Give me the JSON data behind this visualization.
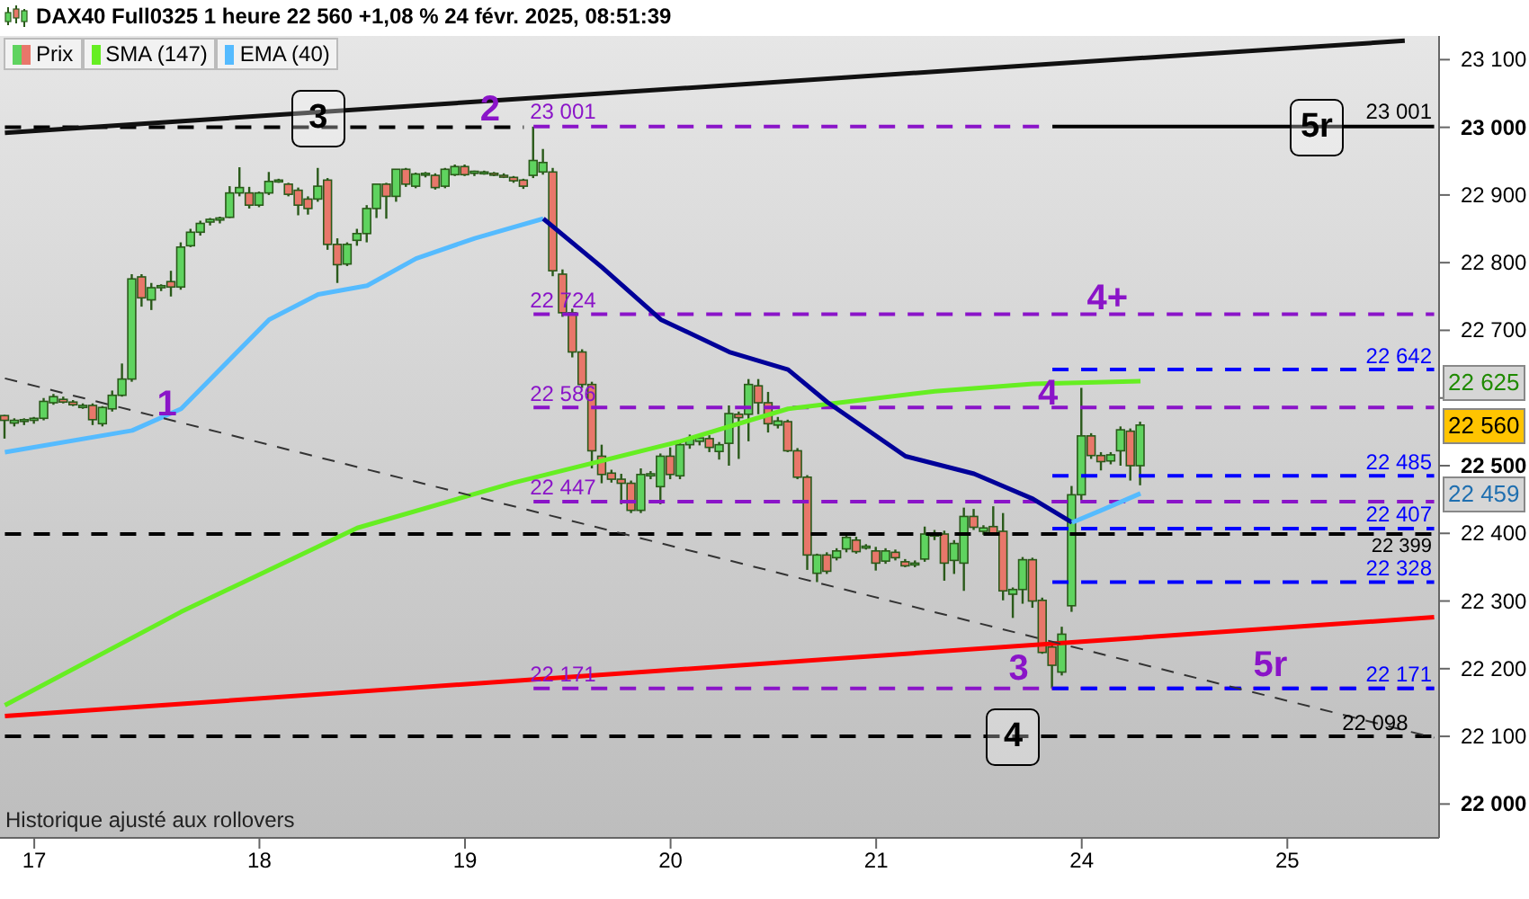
{
  "chart_data": {
    "type": "candlestick",
    "title": "DAX40 Full0325 1 heure 22 560 +1,08 % 24 févr. 2025, 08:51:39",
    "legend": "top left",
    "categories": [
      null,
      null,
      null,
      "17",
      null,
      null,
      null,
      null,
      null,
      null,
      null,
      null,
      null,
      null,
      null,
      null,
      null,
      null,
      null,
      null,
      null,
      null,
      null,
      null,
      null,
      null,
      "18",
      null,
      null,
      null,
      null,
      null,
      null,
      null,
      null,
      null,
      null,
      null,
      null,
      null,
      null,
      null,
      null,
      null,
      null,
      null,
      null,
      "19",
      null,
      null,
      null,
      null,
      null,
      null,
      null,
      null,
      null,
      null,
      null,
      null,
      null,
      null,
      null,
      null,
      null,
      null,
      null,
      null,
      "20",
      null,
      null,
      null,
      null,
      null,
      null,
      null,
      null,
      null,
      null,
      null,
      null,
      null,
      null,
      null,
      null,
      null,
      null,
      null,
      null,
      "21",
      null,
      null,
      null,
      null,
      null,
      null,
      null,
      null,
      null,
      null,
      null,
      null,
      null,
      null,
      null,
      null,
      null,
      null,
      null,
      null,
      "24",
      null,
      null,
      null,
      null,
      null,
      null,
      null,
      null,
      null,
      null,
      null,
      null,
      null,
      null,
      null,
      null,
      null,
      null,
      null,
      null,
      "25",
      null,
      null,
      null,
      null,
      null,
      null,
      null,
      null,
      null,
      null,
      null,
      null,
      null,
      null,
      null
    ],
    "ylim": [
      21950,
      23135
    ],
    "yticks": [
      {
        "value": 22000,
        "label": "22 000"
      },
      {
        "value": 22100,
        "label": "22 100"
      },
      {
        "value": 22200,
        "label": "22 200"
      },
      {
        "value": 22300,
        "label": "22 300"
      },
      {
        "value": 22400,
        "label": "22 400"
      },
      {
        "value": 22500,
        "label": "22 500"
      },
      {
        "value": 22600,
        "label": null
      },
      {
        "value": 22700,
        "label": "22 700"
      },
      {
        "value": 22800,
        "label": "22 800"
      },
      {
        "value": 22900,
        "label": "22 900"
      },
      {
        "value": 23000,
        "label": "23 000"
      },
      {
        "value": 23100,
        "label": "23 100"
      }
    ],
    "series": [
      {
        "name": "Prix",
        "ohlc": [
          [
            22574,
            22575,
            22540,
            22567
          ],
          [
            22563,
            22570,
            22558,
            22567
          ],
          [
            22566,
            22570,
            22560,
            22568
          ],
          [
            22567,
            22572,
            22562,
            22570
          ],
          [
            22570,
            22600,
            22567,
            22595
          ],
          [
            22593,
            22606,
            22590,
            22602
          ],
          [
            22598,
            22602,
            22592,
            22594
          ],
          [
            22594,
            22597,
            22588,
            22590
          ],
          [
            22586,
            22592,
            22584,
            22589
          ],
          [
            22589,
            22592,
            22560,
            22568
          ],
          [
            22562,
            22588,
            22558,
            22586
          ],
          [
            22584,
            22611,
            22580,
            22604
          ],
          [
            22604,
            22651,
            22602,
            22628
          ],
          [
            22628,
            22783,
            22624,
            22776
          ],
          [
            22779,
            22783,
            22735,
            22748
          ],
          [
            22745,
            22770,
            22730,
            22763
          ],
          [
            22763,
            22768,
            22758,
            22766
          ],
          [
            22772,
            22788,
            22750,
            22764
          ],
          [
            22764,
            22830,
            22760,
            22823
          ],
          [
            22825,
            22850,
            22823,
            22845
          ],
          [
            22845,
            22862,
            22840,
            22858
          ],
          [
            22860,
            22866,
            22855,
            22864
          ],
          [
            22863,
            22868,
            22858,
            22866
          ],
          [
            22867,
            22913,
            22866,
            22903
          ],
          [
            22903,
            22941,
            22898,
            22911
          ],
          [
            22903,
            22912,
            22880,
            22885
          ],
          [
            22885,
            22905,
            22882,
            22903
          ],
          [
            22903,
            22934,
            22900,
            22920
          ],
          [
            22921,
            22924,
            22918,
            22922
          ],
          [
            22916,
            22918,
            22898,
            22901
          ],
          [
            22907,
            22911,
            22870,
            22885
          ],
          [
            22894,
            22898,
            22871,
            22880
          ],
          [
            22894,
            22940,
            22890,
            22913
          ],
          [
            22922,
            22925,
            22819,
            22827
          ],
          [
            22827,
            22836,
            22770,
            22797
          ],
          [
            22798,
            22830,
            22795,
            22827
          ],
          [
            22833,
            22850,
            22825,
            22843
          ],
          [
            22843,
            22885,
            22830,
            22880
          ],
          [
            22880,
            22916,
            22866,
            22916
          ],
          [
            22916,
            22918,
            22865,
            22898
          ],
          [
            22898,
            22938,
            22890,
            22938
          ],
          [
            22938,
            22940,
            22912,
            22916
          ],
          [
            22913,
            22933,
            22910,
            22931
          ],
          [
            22930,
            22934,
            22926,
            22932
          ],
          [
            22929,
            22932,
            22908,
            22911
          ],
          [
            22913,
            22940,
            22910,
            22938
          ],
          [
            22930,
            22945,
            22928,
            22942
          ],
          [
            22942,
            22945,
            22928,
            22930
          ],
          [
            22932,
            22936,
            22928,
            22935
          ],
          [
            22933,
            22936,
            22930,
            22934
          ],
          [
            22932,
            22934,
            22928,
            22931
          ],
          [
            22929,
            22932,
            22925,
            22928
          ],
          [
            22926,
            22928,
            22918,
            22921
          ],
          [
            22922,
            22924,
            22909,
            22913
          ],
          [
            22929,
            23001,
            22925,
            22951
          ],
          [
            22934,
            22968,
            22930,
            22948
          ],
          [
            22934,
            22940,
            22780,
            22788
          ],
          [
            22783,
            22790,
            22720,
            22726
          ],
          [
            22726,
            22732,
            22660,
            22668
          ],
          [
            22668,
            22672,
            22615,
            22620
          ],
          [
            22620,
            22624,
            22496,
            22522
          ],
          [
            22514,
            22531,
            22474,
            22487
          ],
          [
            22489,
            22494,
            22475,
            22480
          ],
          [
            22480,
            22488,
            22443,
            22474
          ],
          [
            22474,
            22478,
            22430,
            22434
          ],
          [
            22434,
            22496,
            22430,
            22487
          ],
          [
            22485,
            22492,
            22480,
            22488
          ],
          [
            22469,
            22518,
            22443,
            22514
          ],
          [
            22514,
            22527,
            22480,
            22487
          ],
          [
            22485,
            22536,
            22480,
            22531
          ],
          [
            22531,
            22546,
            22525,
            22540
          ],
          [
            22536,
            22545,
            22530,
            22541
          ],
          [
            22540,
            22545,
            22520,
            22527
          ],
          [
            22521,
            22535,
            22509,
            22531
          ],
          [
            22533,
            22589,
            22500,
            22577
          ],
          [
            22576,
            22580,
            22510,
            22571
          ],
          [
            22576,
            22628,
            22536,
            22620
          ],
          [
            22618,
            22628,
            22576,
            22593
          ],
          [
            22593,
            22609,
            22549,
            22562
          ],
          [
            22560,
            22572,
            22555,
            22566
          ],
          [
            22565,
            22568,
            22520,
            22522
          ],
          [
            22522,
            22526,
            22480,
            22483
          ],
          [
            22483,
            22486,
            22346,
            22368
          ],
          [
            22341,
            22370,
            22328,
            22368
          ],
          [
            22368,
            22372,
            22340,
            22344
          ],
          [
            22364,
            22378,
            22360,
            22374
          ],
          [
            22377,
            22397,
            22372,
            22394
          ],
          [
            22390,
            22395,
            22370,
            22373
          ],
          [
            22380,
            22384,
            22376,
            22381
          ],
          [
            22374,
            22380,
            22345,
            22356
          ],
          [
            22359,
            22378,
            22355,
            22374
          ],
          [
            22372,
            22376,
            22360,
            22364
          ],
          [
            22358,
            22362,
            22350,
            22352
          ],
          [
            22355,
            22360,
            22350,
            22356
          ],
          [
            22362,
            22410,
            22358,
            22399
          ],
          [
            22396,
            22405,
            22390,
            22400
          ],
          [
            22399,
            22404,
            22330,
            22356
          ],
          [
            22360,
            22390,
            22340,
            22385
          ],
          [
            22356,
            22438,
            22315,
            22425
          ],
          [
            22425,
            22436,
            22405,
            22409
          ],
          [
            22403,
            22412,
            22398,
            22408
          ],
          [
            22410,
            22440,
            22398,
            22400
          ],
          [
            22403,
            22430,
            22301,
            22315
          ],
          [
            22310,
            22320,
            22275,
            22317
          ],
          [
            22317,
            22365,
            22296,
            22361
          ],
          [
            22361,
            22364,
            22290,
            22300
          ],
          [
            22301,
            22305,
            22222,
            22224
          ],
          [
            22232,
            22236,
            22171,
            22205
          ],
          [
            22195,
            22262,
            22190,
            22251
          ],
          [
            22293,
            22470,
            22284,
            22457
          ],
          [
            22457,
            22615,
            22449,
            22544
          ],
          [
            22544,
            22548,
            22510,
            22515
          ],
          [
            22515,
            22520,
            22493,
            22506
          ],
          [
            22507,
            22520,
            22502,
            22516
          ],
          [
            22522,
            22558,
            22500,
            22553
          ],
          [
            22551,
            22555,
            22478,
            22500
          ],
          [
            22500,
            22565,
            22471,
            22560
          ],
          null,
          null,
          null,
          null,
          null,
          null,
          null,
          null,
          null,
          null,
          null,
          null,
          null,
          null,
          null,
          null,
          null,
          null,
          null,
          null,
          null,
          null,
          null,
          null,
          null,
          null,
          null,
          null,
          null,
          null
        ],
        "colors": [
          "#e8776a",
          "#5fd35f",
          "#5fd35f",
          "#5fd35f",
          "#5fd35f",
          "#5fd35f",
          "#e8776a",
          "#e8776a",
          "#5fd35f",
          "#e8776a",
          "#5fd35f",
          "#5fd35f",
          "#5fd35f",
          "#5fd35f",
          "#e8776a",
          "#5fd35f",
          "#5fd35f",
          "#e8776a",
          "#5fd35f",
          "#5fd35f",
          "#5fd35f",
          "#5fd35f",
          "#5fd35f",
          "#5fd35f",
          "#5fd35f",
          "#e8776a",
          "#5fd35f",
          "#5fd35f",
          "#5fd35f",
          "#e8776a",
          "#e8776a",
          "#e8776a",
          "#5fd35f",
          "#e8776a",
          "#e8776a",
          "#5fd35f",
          "#5fd35f",
          "#5fd35f",
          "#5fd35f",
          "#e8776a",
          "#5fd35f",
          "#e8776a",
          "#5fd35f",
          "#5fd35f",
          "#e8776a",
          "#5fd35f",
          "#5fd35f",
          "#e8776a",
          "#5fd35f",
          "#5fd35f",
          "#e8776a",
          "#e8776a",
          "#e8776a",
          "#e8776a",
          "#5fd35f",
          "#5fd35f",
          "#e8776a",
          "#e8776a",
          "#e8776a",
          "#e8776a",
          "#e8776a",
          "#e8776a",
          "#e8776a",
          "#e8776a",
          "#e8776a",
          "#5fd35f",
          "#5fd35f",
          "#5fd35f",
          "#e8776a",
          "#5fd35f",
          "#5fd35f",
          "#5fd35f",
          "#e8776a",
          "#5fd35f",
          "#5fd35f",
          "#e8776a",
          "#5fd35f",
          "#e8776a",
          "#e8776a",
          "#5fd35f",
          "#e8776a",
          "#e8776a",
          "#e8776a",
          "#5fd35f",
          "#e8776a",
          "#5fd35f",
          "#5fd35f",
          "#e8776a",
          "#5fd35f",
          "#e8776a",
          "#5fd35f",
          "#e8776a",
          "#e8776a",
          "#5fd35f",
          "#5fd35f",
          "#5fd35f",
          "#e8776a",
          "#5fd35f",
          "#5fd35f",
          "#e8776a",
          "#5fd35f",
          "#e8776a",
          "#e8776a",
          "#5fd35f",
          "#5fd35f",
          "#e8776a",
          "#e8776a",
          "#e8776a",
          "#5fd35f",
          "#5fd35f",
          "#5fd35f",
          "#e8776a",
          "#e8776a",
          "#5fd35f",
          "#5fd35f",
          "#e8776a",
          "#5fd35f",
          null,
          null,
          null,
          null,
          null,
          null,
          null,
          null,
          null,
          null,
          null,
          null,
          null,
          null,
          null,
          null,
          null,
          null,
          null,
          null,
          null,
          null,
          null,
          null,
          null,
          null,
          null,
          null,
          null,
          null
        ]
      },
      {
        "name": "SMA (147)",
        "type": "line",
        "color": "#66ee22",
        "values": [
          22146,
          null,
          null,
          null,
          null,
          null,
          null,
          null,
          null,
          null,
          null,
          null,
          null,
          null,
          null,
          null,
          null,
          null,
          22284,
          null,
          null,
          null,
          null,
          null,
          null,
          null,
          null,
          null,
          null,
          null,
          null,
          null,
          null,
          null,
          null,
          null,
          22408,
          null,
          null,
          null,
          null,
          null,
          null,
          null,
          null,
          null,
          null,
          null,
          null,
          null,
          null,
          null,
          22475,
          null,
          null,
          null,
          null,
          null,
          null,
          null,
          null,
          null,
          null,
          null,
          null,
          null,
          null,
          null,
          null,
          22536,
          null,
          null,
          null,
          null,
          null,
          null,
          null,
          null,
          null,
          null,
          22584,
          null,
          null,
          null,
          null,
          null,
          null,
          null,
          null,
          null,
          null,
          null,
          null,
          null,
          null,
          22610,
          null,
          null,
          null,
          null,
          null,
          null,
          null,
          null,
          null,
          22621,
          null,
          null,
          null,
          null,
          null,
          null,
          null,
          null,
          null,
          null,
          22625,
          null,
          null,
          null,
          null,
          null,
          null,
          null,
          null,
          null,
          null,
          null,
          null,
          null,
          null,
          null,
          null,
          null,
          null,
          null,
          null,
          null,
          null,
          null,
          null,
          null,
          null,
          null,
          null,
          null,
          null
        ]
      },
      {
        "name": "EMA (40)",
        "type": "line",
        "color": "#55bbff",
        "values": [
          22520,
          null,
          null,
          null,
          null,
          null,
          null,
          null,
          null,
          null,
          null,
          null,
          null,
          22552,
          null,
          null,
          null,
          null,
          22584,
          null,
          null,
          null,
          null,
          null,
          null,
          null,
          null,
          22716,
          null,
          null,
          null,
          null,
          22753,
          null,
          null,
          null,
          null,
          22766,
          null,
          null,
          null,
          null,
          22806,
          null,
          null,
          null,
          null,
          null,
          22836,
          null,
          null,
          null,
          null,
          null,
          null,
          22865,
          null,
          null,
          null,
          null,
          null,
          null,
          null,
          null,
          null,
          null,
          null,
          null,
          null,
          null,
          null,
          null,
          null,
          null,
          null,
          null,
          null,
          null,
          null,
          null,
          null,
          null,
          null,
          null,
          null,
          null,
          null,
          null,
          null,
          null,
          null,
          null,
          null,
          null,
          null,
          null,
          null,
          null,
          null,
          null,
          null,
          null,
          null,
          null,
          null,
          null,
          null,
          null,
          null,
          null,
          null,
          null,
          null,
          null,
          null,
          null,
          null,
          null,
          null,
          null,
          null,
          null,
          null,
          null,
          null,
          null,
          null,
          null,
          null,
          null,
          null,
          null,
          null,
          null,
          null,
          null,
          null,
          null,
          null,
          null,
          null,
          null,
          null,
          null,
          null,
          null,
          null
        ]
      },
      {
        "type": "line",
        "color": "#000099",
        "values": [
          null,
          null,
          null,
          null,
          null,
          null,
          null,
          null,
          null,
          null,
          null,
          null,
          null,
          null,
          null,
          null,
          null,
          null,
          null,
          null,
          null,
          null,
          null,
          null,
          null,
          null,
          null,
          null,
          null,
          null,
          null,
          null,
          null,
          null,
          null,
          null,
          null,
          null,
          null,
          null,
          null,
          null,
          null,
          null,
          null,
          null,
          null,
          null,
          null,
          null,
          null,
          null,
          null,
          null,
          null,
          22865,
          null,
          null,
          null,
          null,
          null,
          22793,
          null,
          null,
          null,
          null,
          null,
          22716,
          null,
          null,
          null,
          null,
          null,
          null,
          22668,
          null,
          null,
          null,
          null,
          null,
          22642,
          null,
          null,
          null,
          22594,
          null,
          null,
          null,
          null,
          null,
          null,
          null,
          22514,
          null,
          null,
          null,
          null,
          null,
          null,
          22488,
          null,
          null,
          null,
          null,
          null,
          22451,
          null,
          null,
          null,
          22416,
          null,
          null,
          null,
          null,
          null,
          null,
          null,
          null,
          null,
          null,
          null,
          null,
          null,
          null,
          null,
          null,
          null,
          null,
          null,
          null,
          null,
          null,
          null,
          null,
          null,
          null,
          null,
          null,
          null,
          null,
          null,
          null,
          null,
          null,
          null,
          null,
          null
        ]
      },
      {
        "type": "line",
        "color": "#55bbff",
        "values": [
          null,
          null,
          null,
          null,
          null,
          null,
          null,
          null,
          null,
          null,
          null,
          null,
          null,
          null,
          null,
          null,
          null,
          null,
          null,
          null,
          null,
          null,
          null,
          null,
          null,
          null,
          null,
          null,
          null,
          null,
          null,
          null,
          null,
          null,
          null,
          null,
          null,
          null,
          null,
          null,
          null,
          null,
          null,
          null,
          null,
          null,
          null,
          null,
          null,
          null,
          null,
          null,
          null,
          null,
          null,
          null,
          null,
          null,
          null,
          null,
          null,
          null,
          null,
          null,
          null,
          null,
          null,
          null,
          null,
          null,
          null,
          null,
          null,
          null,
          null,
          null,
          null,
          null,
          null,
          null,
          null,
          null,
          null,
          null,
          null,
          null,
          null,
          null,
          null,
          null,
          null,
          null,
          null,
          null,
          null,
          null,
          null,
          null,
          null,
          null,
          null,
          null,
          null,
          null,
          null,
          null,
          null,
          null,
          null,
          22416,
          null,
          null,
          22434,
          null,
          null,
          null,
          22459,
          null,
          null,
          null,
          null,
          null,
          null,
          null,
          null,
          null,
          null,
          null,
          null,
          null,
          null,
          null,
          null,
          null,
          null,
          null,
          null,
          null,
          null,
          null,
          null,
          null,
          null,
          null,
          null,
          null,
          null
        ]
      },
      {
        "type": "line",
        "color": "#ff0000",
        "values": [
          22130,
          null,
          null,
          null,
          null,
          null,
          null,
          null,
          null,
          null,
          null,
          null,
          null,
          null,
          null,
          null,
          null,
          null,
          null,
          null,
          null,
          null,
          null,
          null,
          null,
          null,
          null,
          null,
          null,
          null,
          null,
          null,
          null,
          null,
          null,
          null,
          null,
          null,
          null,
          null,
          null,
          null,
          null,
          null,
          null,
          null,
          null,
          null,
          null,
          null,
          null,
          null,
          null,
          null,
          null,
          null,
          null,
          null,
          null,
          null,
          null,
          null,
          null,
          null,
          null,
          null,
          null,
          null,
          null,
          null,
          null,
          null,
          null,
          null,
          null,
          null,
          null,
          null,
          null,
          null,
          null,
          null,
          null,
          null,
          null,
          null,
          null,
          null,
          null,
          null,
          null,
          null,
          null,
          null,
          null,
          null,
          null,
          null,
          null,
          null,
          null,
          null,
          null,
          null,
          null,
          null,
          null,
          null,
          null,
          null,
          null,
          null,
          null,
          null,
          null,
          null,
          null,
          null,
          null,
          null,
          null,
          null,
          null,
          null,
          null,
          null,
          null,
          null,
          null,
          null,
          null,
          null,
          null,
          null,
          null,
          null,
          null,
          null,
          null,
          null,
          null,
          null,
          null,
          null,
          null,
          null,
          22276
        ]
      },
      {
        "type": "line",
        "color": "#111111",
        "values": [
          22992,
          null,
          null,
          null,
          null,
          null,
          null,
          null,
          null,
          null,
          null,
          null,
          null,
          null,
          null,
          null,
          null,
          null,
          null,
          null,
          null,
          null,
          null,
          null,
          null,
          null,
          null,
          null,
          null,
          null,
          null,
          null,
          null,
          null,
          null,
          null,
          null,
          null,
          null,
          null,
          null,
          null,
          null,
          null,
          null,
          null,
          null,
          null,
          null,
          null,
          null,
          null,
          null,
          null,
          null,
          null,
          null,
          null,
          null,
          null,
          null,
          null,
          null,
          null,
          null,
          null,
          null,
          null,
          null,
          null,
          null,
          null,
          null,
          null,
          null,
          null,
          null,
          null,
          null,
          null,
          null,
          null,
          null,
          null,
          null,
          null,
          null,
          null,
          null,
          null,
          null,
          null,
          null,
          null,
          null,
          null,
          null,
          null,
          null,
          null,
          null,
          null,
          null,
          null,
          null,
          null,
          null,
          null,
          null,
          null,
          null,
          null,
          null,
          null,
          null,
          null,
          null,
          null,
          null,
          null,
          null,
          null,
          null,
          null,
          null,
          null,
          null,
          null,
          null,
          null,
          null,
          null,
          null,
          null,
          null,
          null,
          null,
          null,
          null,
          null,
          null,
          null,
          null,
          23128,
          null,
          null,
          null
        ]
      },
      {
        "type": "line",
        "color": "#333333",
        "line_style": "dashed",
        "values": [
          22629,
          null,
          null,
          null,
          null,
          null,
          null,
          null,
          null,
          null,
          null,
          null,
          null,
          null,
          null,
          null,
          null,
          null,
          null,
          null,
          null,
          null,
          null,
          null,
          null,
          null,
          null,
          null,
          null,
          null,
          null,
          null,
          null,
          null,
          null,
          null,
          null,
          null,
          null,
          null,
          null,
          null,
          null,
          null,
          null,
          null,
          null,
          null,
          null,
          null,
          null,
          null,
          null,
          null,
          null,
          null,
          null,
          null,
          null,
          null,
          null,
          null,
          null,
          null,
          null,
          null,
          null,
          null,
          null,
          null,
          null,
          null,
          null,
          null,
          null,
          null,
          null,
          null,
          null,
          null,
          null,
          null,
          null,
          null,
          null,
          null,
          null,
          null,
          null,
          null,
          null,
          null,
          null,
          null,
          null,
          null,
          null,
          null,
          null,
          null,
          null,
          null,
          null,
          null,
          null,
          null,
          null,
          null,
          null,
          null,
          null,
          null,
          null,
          null,
          null,
          null,
          null,
          null,
          null,
          null,
          null,
          null,
          null,
          null,
          null,
          null,
          null,
          null,
          null,
          null,
          null,
          null,
          null,
          null,
          null,
          null,
          null,
          null,
          null,
          null,
          null,
          null,
          null,
          null,
          null,
          null,
          22098
        ]
      }
    ],
    "ref_lines": [
      {
        "axis": "y",
        "value": 23001,
        "label": "23 001",
        "color": "#000000",
        "line_style": "solid"
      },
      {
        "axis": "y",
        "value": 23001,
        "label": "23 001",
        "color": "#8a14c8",
        "line_style": "dashed"
      },
      {
        "axis": "y",
        "value": 22724,
        "label": "22 724",
        "color": "#8a14c8",
        "line_style": "dashed"
      },
      {
        "axis": "y",
        "value": 22586,
        "label": "22 586",
        "color": "#8a14c8",
        "line_style": "dashed"
      },
      {
        "axis": "y",
        "value": 22447,
        "label": "22 447",
        "color": "#8a14c8",
        "line_style": "dashed"
      },
      {
        "axis": "y",
        "value": 22171,
        "label": "22 171",
        "color": "#8a14c8",
        "line_style": "dashed"
      },
      {
        "axis": "y",
        "value": 22642,
        "label": "22 642",
        "color": "#0000ff",
        "line_style": "dashed"
      },
      {
        "axis": "y",
        "value": 22485,
        "label": "22 485",
        "color": "#0000ff",
        "line_style": "dashed"
      },
      {
        "axis": "y",
        "value": 22407,
        "label": "22 407",
        "color": "#0000ff",
        "line_style": "dashed"
      },
      {
        "axis": "y",
        "value": 22328,
        "label": "22 328",
        "color": "#0000ff",
        "line_style": "dashed"
      },
      {
        "axis": "y",
        "value": 22171,
        "label": "22 171",
        "color": "#0000ff",
        "line_style": "dashed"
      },
      {
        "axis": "y",
        "value": 22399,
        "label": "22 399",
        "color": "#000000",
        "line_style": "dashed"
      },
      {
        "axis": "y",
        "value": 22100,
        "color": "#000000",
        "line_style": "dashed"
      },
      {
        "axis": "y",
        "value": 23000,
        "color": "#000000",
        "line_style": "dashed"
      }
    ],
    "annotations": [
      {
        "text": "1",
        "y": 22570
      },
      {
        "text": "2",
        "y": 23005
      },
      {
        "text": "3",
        "y": 22178
      },
      {
        "text": "4",
        "y": 22584
      },
      {
        "text": "4+",
        "y": 22727
      },
      {
        "text": "5r",
        "y": 22183
      },
      {
        "text": "3",
        "y": 23013
      },
      {
        "text": "4",
        "y": 22100
      },
      {
        "text": "5r",
        "y": 23000
      },
      {
        "text": "22 098",
        "y": 22098
      },
      "22 625",
      "22 560",
      "22 459",
      "Historique ajusté aux rollovers"
    ]
  }
}
